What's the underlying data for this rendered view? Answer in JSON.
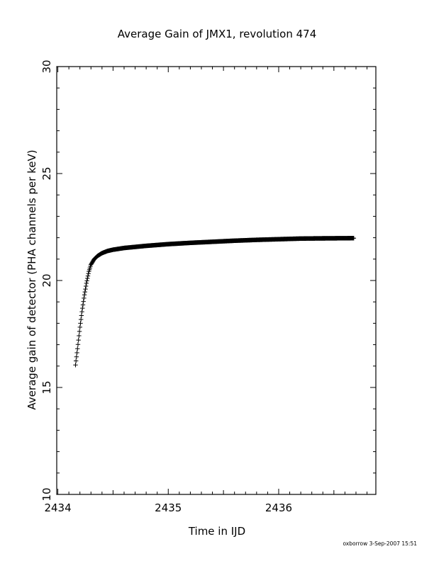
{
  "chart_data": {
    "type": "scatter",
    "title": "Average Gain of JMX1, revolution 474",
    "xlabel": "Time in IJD",
    "ylabel": "Average gain of detector (PHA channels per keV)",
    "xlim": [
      2433.99,
      2436.88
    ],
    "ylim": [
      10,
      30
    ],
    "x_ticks": [
      2434,
      2435,
      2436
    ],
    "y_ticks": [
      10,
      15,
      20,
      25,
      30
    ],
    "x_tick_labels": [
      "2434",
      "2435",
      "2436"
    ],
    "y_tick_labels": [
      "10",
      "15",
      "20",
      "25",
      "30"
    ],
    "marker": "plus",
    "grid": false,
    "legend": "none",
    "series": [
      {
        "x_start": 2434.16,
        "x_end": 2436.68,
        "points": [
          [
            2434.16,
            16.05
          ],
          [
            2434.18,
            16.9
          ],
          [
            2434.2,
            17.8
          ],
          [
            2434.22,
            18.6
          ],
          [
            2434.24,
            19.3
          ],
          [
            2434.26,
            19.9
          ],
          [
            2434.28,
            20.4
          ],
          [
            2434.3,
            20.75
          ],
          [
            2434.33,
            21.0
          ],
          [
            2434.36,
            21.15
          ],
          [
            2434.4,
            21.28
          ],
          [
            2434.45,
            21.38
          ],
          [
            2434.5,
            21.44
          ],
          [
            2434.6,
            21.52
          ],
          [
            2434.7,
            21.57
          ],
          [
            2434.8,
            21.62
          ],
          [
            2434.9,
            21.66
          ],
          [
            2435.0,
            21.7
          ],
          [
            2435.2,
            21.76
          ],
          [
            2435.4,
            21.81
          ],
          [
            2435.6,
            21.86
          ],
          [
            2435.8,
            21.9
          ],
          [
            2436.0,
            21.93
          ],
          [
            2436.2,
            21.96
          ],
          [
            2436.4,
            21.97
          ],
          [
            2436.68,
            21.98
          ]
        ]
      }
    ]
  },
  "footer": {
    "stamp": "oxborrow   3-Sep-2007  15:51"
  }
}
